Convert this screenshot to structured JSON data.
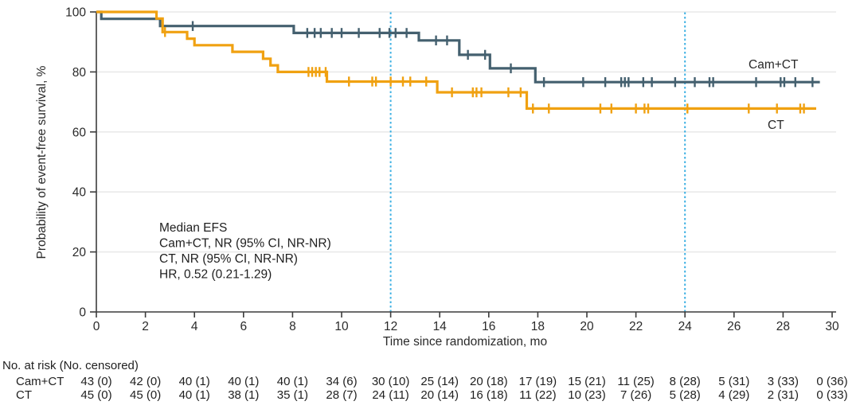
{
  "chart_data": {
    "type": "line",
    "subtype": "kaplan-meier-step",
    "title": "",
    "xlabel": "Time since randomization, mo",
    "ylabel": "Probability of event-free survival, %",
    "xlim": [
      0,
      30
    ],
    "ylim": [
      0,
      100
    ],
    "xticks": [
      0,
      2,
      4,
      6,
      8,
      10,
      12,
      14,
      16,
      18,
      20,
      22,
      24,
      26,
      28,
      30
    ],
    "yticks": [
      0,
      20,
      40,
      60,
      80,
      100
    ],
    "grid": "horizontal",
    "gridline_color": "#e9e9e9",
    "axis_color": "#3c3c3c",
    "reference_lines": {
      "x_values": [
        12,
        24
      ],
      "color": "#3fb1e3",
      "style": "dotted"
    },
    "annotation": {
      "lines": [
        "Median EFS",
        "Cam+CT, NR (95% CI, NR-NR)",
        "CT, NR (95% CI, NR-NR)",
        "HR, 0.52 (0.21-1.29)"
      ]
    },
    "series": [
      {
        "name": "Cam+CT",
        "end_label": "Cam+CT",
        "color": "#44606f",
        "steps": [
          [
            0,
            100
          ],
          [
            0.2,
            97.7
          ],
          [
            2.6,
            95.3
          ],
          [
            8.05,
            93.0
          ],
          [
            13.15,
            90.5
          ],
          [
            14.8,
            85.7
          ],
          [
            16.05,
            81.2
          ],
          [
            17.9,
            76.6
          ],
          [
            29.5,
            76.6
          ]
        ],
        "censor_marks": [
          [
            3.93,
            95.3
          ],
          [
            8.6,
            93.0
          ],
          [
            8.9,
            93.0
          ],
          [
            9.15,
            93.0
          ],
          [
            9.6,
            93.0
          ],
          [
            10.0,
            93.0
          ],
          [
            10.7,
            93.0
          ],
          [
            11.55,
            93.0
          ],
          [
            11.95,
            93.0
          ],
          [
            12.2,
            93.0
          ],
          [
            12.65,
            93.0
          ],
          [
            13.85,
            90.5
          ],
          [
            14.3,
            90.5
          ],
          [
            15.15,
            85.7
          ],
          [
            15.85,
            85.7
          ],
          [
            16.9,
            81.2
          ],
          [
            18.25,
            76.6
          ],
          [
            19.85,
            76.6
          ],
          [
            20.75,
            76.6
          ],
          [
            21.4,
            76.6
          ],
          [
            21.55,
            76.6
          ],
          [
            21.7,
            76.6
          ],
          [
            22.3,
            76.6
          ],
          [
            22.65,
            76.6
          ],
          [
            23.6,
            76.6
          ],
          [
            24.4,
            76.6
          ],
          [
            25.0,
            76.6
          ],
          [
            25.15,
            76.6
          ],
          [
            26.9,
            76.6
          ],
          [
            27.9,
            76.6
          ],
          [
            28.05,
            76.6
          ],
          [
            28.5,
            76.6
          ],
          [
            29.2,
            76.6
          ]
        ]
      },
      {
        "name": "CT",
        "end_label": "CT",
        "color": "#f0a111",
        "steps": [
          [
            0,
            100
          ],
          [
            2.45,
            97.8
          ],
          [
            2.7,
            93.3
          ],
          [
            3.7,
            91.1
          ],
          [
            4.0,
            88.9
          ],
          [
            5.55,
            86.7
          ],
          [
            6.8,
            84.4
          ],
          [
            7.1,
            82.2
          ],
          [
            7.4,
            80.0
          ],
          [
            9.4,
            76.8
          ],
          [
            13.9,
            73.2
          ],
          [
            17.55,
            67.8
          ],
          [
            29.35,
            67.8
          ]
        ],
        "censor_marks": [
          [
            2.8,
            93.3
          ],
          [
            8.65,
            80.0
          ],
          [
            8.8,
            80.0
          ],
          [
            8.95,
            80.0
          ],
          [
            9.1,
            80.0
          ],
          [
            9.35,
            80.0
          ],
          [
            10.3,
            76.8
          ],
          [
            11.25,
            76.8
          ],
          [
            11.4,
            76.8
          ],
          [
            12.0,
            76.8
          ],
          [
            12.5,
            76.8
          ],
          [
            12.8,
            76.8
          ],
          [
            13.45,
            76.8
          ],
          [
            14.5,
            73.2
          ],
          [
            15.35,
            73.2
          ],
          [
            15.5,
            73.2
          ],
          [
            15.7,
            73.2
          ],
          [
            16.8,
            73.2
          ],
          [
            17.3,
            73.2
          ],
          [
            17.8,
            67.8
          ],
          [
            18.45,
            67.8
          ],
          [
            20.55,
            67.8
          ],
          [
            21.0,
            67.8
          ],
          [
            22.0,
            67.8
          ],
          [
            22.35,
            67.8
          ],
          [
            22.5,
            67.8
          ],
          [
            24.1,
            67.8
          ],
          [
            26.6,
            67.8
          ],
          [
            27.75,
            67.8
          ],
          [
            28.7,
            67.8
          ],
          [
            28.85,
            67.8
          ]
        ]
      }
    ]
  },
  "risk_table": {
    "header": "No. at risk (No. censored)",
    "time_points": [
      0,
      2,
      4,
      6,
      8,
      10,
      12,
      14,
      16,
      18,
      20,
      22,
      24,
      26,
      28,
      30
    ],
    "rows": [
      {
        "label": "Cam+CT",
        "values": [
          "43 (0)",
          "42 (0)",
          "40 (1)",
          "40 (1)",
          "40 (1)",
          "34 (6)",
          "30 (10)",
          "25 (14)",
          "20 (18)",
          "17 (19)",
          "15 (21)",
          "11 (25)",
          "8 (28)",
          "5 (31)",
          "3 (33)",
          "0 (36)"
        ]
      },
      {
        "label": "CT",
        "values": [
          "45 (0)",
          "45 (0)",
          "40 (1)",
          "38 (1)",
          "35 (1)",
          "28 (7)",
          "24 (11)",
          "20 (14)",
          "16 (18)",
          "11 (22)",
          "10 (23)",
          "7 (26)",
          "5 (28)",
          "4 (29)",
          "2 (31)",
          "0 (33)"
        ]
      }
    ]
  }
}
